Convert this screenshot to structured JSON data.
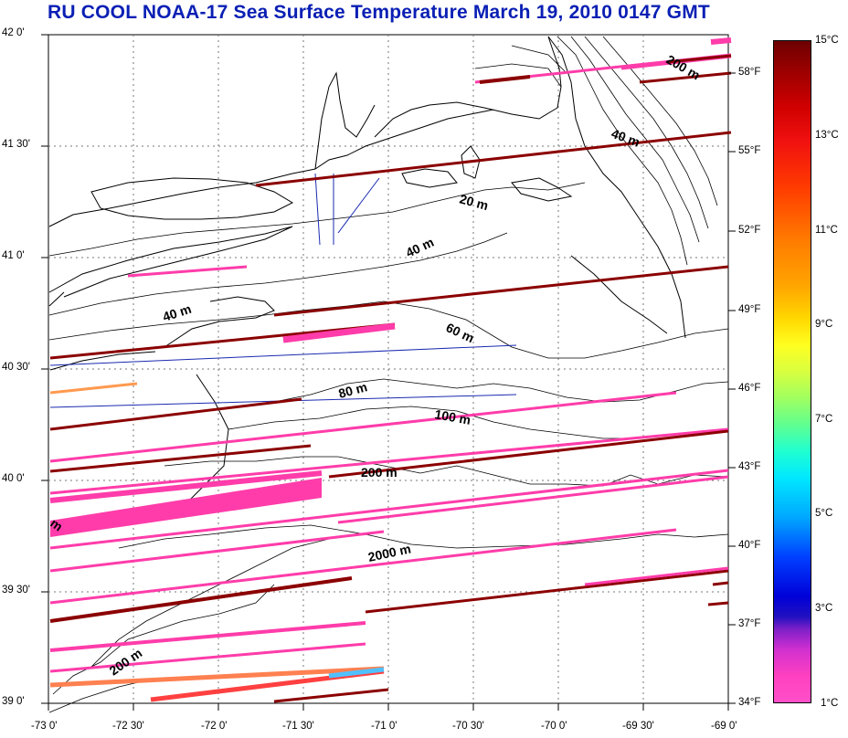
{
  "title": "RU COOL  NOAA-17 Sea Surface Temperature March 19, 2010 0147 GMT",
  "lat_ticks": [
    "42 0'",
    "41 30'",
    "41 0'",
    "40 30'",
    "40 0'",
    "39 30'",
    "39 0'"
  ],
  "lon_ticks": [
    "-73 0'",
    "-72 30'",
    "-72 0'",
    "-71 30'",
    "-71 0'",
    "-70 30'",
    "-70 0'",
    "-69 30'",
    "-69 0'"
  ],
  "depth_labels": [
    "200 m",
    "40 m",
    "20 m",
    "40 m",
    "40 m",
    "60 m",
    "80 m",
    "100 m",
    "200 m",
    "2000 m",
    "200 m",
    "m"
  ],
  "colorbar": {
    "celsius": [
      "15°C",
      "13°C",
      "11°C",
      "9°C",
      "7°C",
      "5°C",
      "3°C",
      "1°C"
    ],
    "fahrenheit": [
      "58°F",
      "55°F",
      "52°F",
      "49°F",
      "46°F",
      "43°F",
      "40°F",
      "37°F",
      "34°F"
    ]
  },
  "colors": {
    "title": "#0a1fb4",
    "swath_pink": "#ff3caa",
    "swath_dark": "#8b0000"
  }
}
